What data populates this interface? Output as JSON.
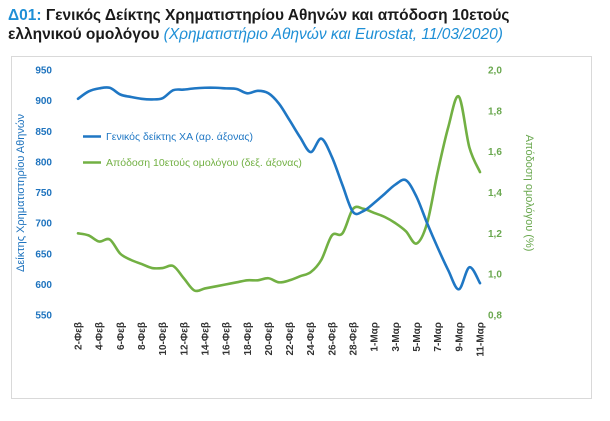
{
  "title": {
    "code": "Δ01:",
    "main_line1": "Γενικός Δείκτης Χρηματιστηρίου Αθηνών και απόδοση 10ετούς",
    "main_line2": "ελληνικού ομολόγου",
    "source": "(Χρηματιστήριο Αθηνών και Eurostat, 11/03/2020)"
  },
  "colors": {
    "index_series": "#1f77c4",
    "bond_series": "#72b043",
    "left_axis_text": "#1e73be",
    "right_axis_text": "#6aa84f",
    "tick_label": "#333333"
  },
  "chart_data": {
    "type": "line",
    "x": [
      "2-Φεβ",
      "3-Φεβ",
      "4-Φεβ",
      "5-Φεβ",
      "6-Φεβ",
      "7-Φεβ",
      "8-Φεβ",
      "9-Φεβ",
      "10-Φεβ",
      "11-Φεβ",
      "12-Φεβ",
      "13-Φεβ",
      "14-Φεβ",
      "15-Φεβ",
      "16-Φεβ",
      "17-Φεβ",
      "18-Φεβ",
      "19-Φεβ",
      "20-Φεβ",
      "21-Φεβ",
      "22-Φεβ",
      "23-Φεβ",
      "24-Φεβ",
      "25-Φεβ",
      "26-Φεβ",
      "27-Φεβ",
      "28-Φεβ",
      "29-Φεβ",
      "1-Μαρ",
      "2-Μαρ",
      "3-Μαρ",
      "4-Μαρ",
      "5-Μαρ",
      "6-Μαρ",
      "7-Μαρ",
      "8-Μαρ",
      "9-Μαρ",
      "10-Μαρ",
      "11-Μαρ"
    ],
    "x_tick_labels": [
      "2-Φεβ",
      "4-Φεβ",
      "6-Φεβ",
      "8-Φεβ",
      "10-Φεβ",
      "12-Φεβ",
      "14-Φεβ",
      "16-Φεβ",
      "18-Φεβ",
      "20-Φεβ",
      "22-Φεβ",
      "24-Φεβ",
      "26-Φεβ",
      "28-Φεβ",
      "1-Μαρ",
      "3-Μαρ",
      "5-Μαρ",
      "7-Μαρ",
      "9-Μαρ",
      "11-Μαρ"
    ],
    "series": [
      {
        "name": "Γενικός δείκτης ΧΑ (αρ. άξονας)",
        "axis": "left",
        "values": [
          903,
          915,
          920,
          921,
          910,
          906,
          903,
          902,
          904,
          917,
          918,
          920,
          921,
          921,
          920,
          919,
          912,
          916,
          912,
          895,
          868,
          840,
          816,
          838,
          808,
          762,
          718,
          720,
          733,
          748,
          763,
          770,
          743,
          700,
          660,
          623,
          592,
          628,
          602
        ]
      },
      {
        "name": "Απόδοση 10ετούς ομολόγου (δεξ. άξονας)",
        "axis": "right",
        "values": [
          1.2,
          1.19,
          1.16,
          1.17,
          1.1,
          1.07,
          1.05,
          1.03,
          1.03,
          1.04,
          0.98,
          0.92,
          0.93,
          0.94,
          0.95,
          0.96,
          0.97,
          0.97,
          0.98,
          0.96,
          0.97,
          0.99,
          1.01,
          1.07,
          1.19,
          1.2,
          1.32,
          1.32,
          1.3,
          1.28,
          1.25,
          1.21,
          1.15,
          1.25,
          1.5,
          1.72,
          1.87,
          1.62,
          1.5
        ]
      }
    ],
    "y_left": {
      "label": "Δείκτης Χρηματιστηρίου Αθηνών",
      "ylim": [
        550,
        950
      ],
      "ticks": [
        "550",
        "600",
        "650",
        "700",
        "750",
        "800",
        "850",
        "900",
        "950"
      ]
    },
    "y_right": {
      "label": "Απόδοση ομολόγου (%)",
      "ylim": [
        0.8,
        2.0
      ],
      "ticks": [
        "0,8",
        "1,0",
        "1,2",
        "1,4",
        "1,6",
        "1,8",
        "2,0"
      ]
    },
    "legend_placement": "top-left",
    "grid": false
  }
}
